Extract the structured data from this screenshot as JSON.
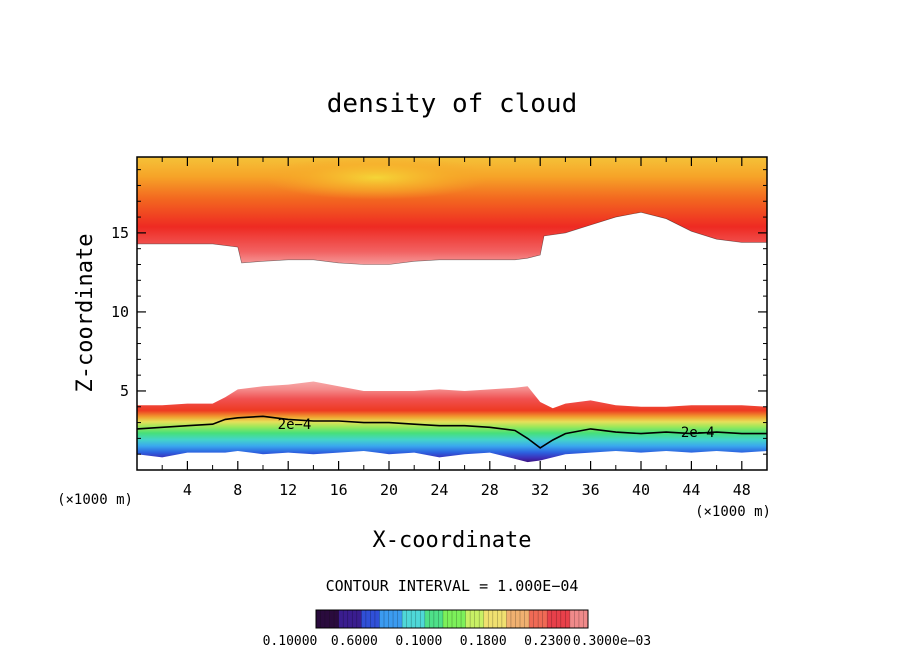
{
  "chart_data": {
    "type": "heatmap",
    "title": "density of cloud",
    "xlabel": "X-coordinate",
    "ylabel": "Z-coordinate",
    "x_unit": "(×1000 m)",
    "xlim": [
      0,
      50
    ],
    "ylim": [
      0,
      19.8
    ],
    "x_ticks": [
      4,
      8,
      12,
      16,
      20,
      24,
      28,
      32,
      36,
      40,
      44,
      48
    ],
    "y_ticks": [
      5,
      10,
      15
    ],
    "contour_interval_text": "CONTOUR INTERVAL = 1.000E−04",
    "contour_labels": [
      {
        "text": "2e−4",
        "x": 12.5,
        "z": 2.9
      },
      {
        "text": "2e−4",
        "x": 44.5,
        "z": 2.4
      }
    ],
    "colorbar": {
      "colors": [
        "#2a0b3d",
        "#3a1d8f",
        "#3050d8",
        "#3b9bf0",
        "#4fd8d8",
        "#4ee089",
        "#7cf05a",
        "#c8f065",
        "#f0e070",
        "#f0b070",
        "#f06a55",
        "#e8404a",
        "#f08a8a"
      ],
      "labels": [
        "0.10000",
        "0.6000",
        "0.1000",
        "0.1800",
        "0.2300",
        "0.3000e−03"
      ]
    },
    "layers": {
      "upper_cloud": {
        "x": [
          0,
          2,
          4,
          6,
          8,
          8.3,
          10,
          12,
          14,
          16,
          18,
          20,
          22,
          24,
          26,
          28,
          30,
          31,
          32,
          32.3,
          34,
          36,
          38,
          40,
          42,
          44,
          46,
          48,
          50
        ],
        "base_z": [
          14.3,
          14.3,
          14.3,
          14.3,
          14.1,
          13.1,
          13.2,
          13.3,
          13.3,
          13.1,
          13.0,
          13.0,
          13.2,
          13.3,
          13.3,
          13.3,
          13.3,
          13.4,
          13.6,
          14.8,
          15.0,
          15.5,
          16.0,
          16.3,
          15.9,
          15.1,
          14.6,
          14.4,
          14.4
        ],
        "top_z": 19.8,
        "core_z": 18.5,
        "core_x_range": [
          10,
          28
        ]
      },
      "lower_cloud": {
        "x": [
          0,
          2,
          4,
          6,
          7,
          8,
          10,
          12,
          14,
          16,
          18,
          20,
          22,
          24,
          26,
          28,
          30,
          31,
          32,
          33,
          34,
          36,
          38,
          40,
          42,
          44,
          46,
          48,
          50
        ],
        "top_z": [
          4.1,
          4.1,
          4.2,
          4.2,
          4.6,
          5.1,
          5.3,
          5.4,
          5.6,
          5.3,
          5.0,
          5.0,
          5.0,
          5.1,
          5.0,
          5.1,
          5.2,
          5.3,
          4.3,
          3.9,
          4.2,
          4.4,
          4.1,
          4.0,
          4.0,
          4.1,
          4.1,
          4.1,
          4.0
        ],
        "contour_2e4_z": [
          2.6,
          2.7,
          2.8,
          2.9,
          3.2,
          3.3,
          3.4,
          3.2,
          3.1,
          3.1,
          3.0,
          3.0,
          2.9,
          2.8,
          2.8,
          2.7,
          2.5,
          2.0,
          1.4,
          1.9,
          2.3,
          2.6,
          2.4,
          2.3,
          2.4,
          2.3,
          2.4,
          2.3,
          2.3
        ],
        "bottom_z": [
          1.0,
          0.8,
          1.1,
          1.1,
          1.1,
          1.2,
          1.0,
          1.1,
          1.0,
          1.1,
          1.2,
          1.0,
          1.1,
          0.8,
          1.0,
          1.1,
          0.7,
          0.5,
          0.6,
          0.8,
          1.0,
          1.1,
          1.2,
          1.1,
          1.2,
          1.1,
          1.2,
          1.1,
          1.2
        ]
      }
    }
  }
}
